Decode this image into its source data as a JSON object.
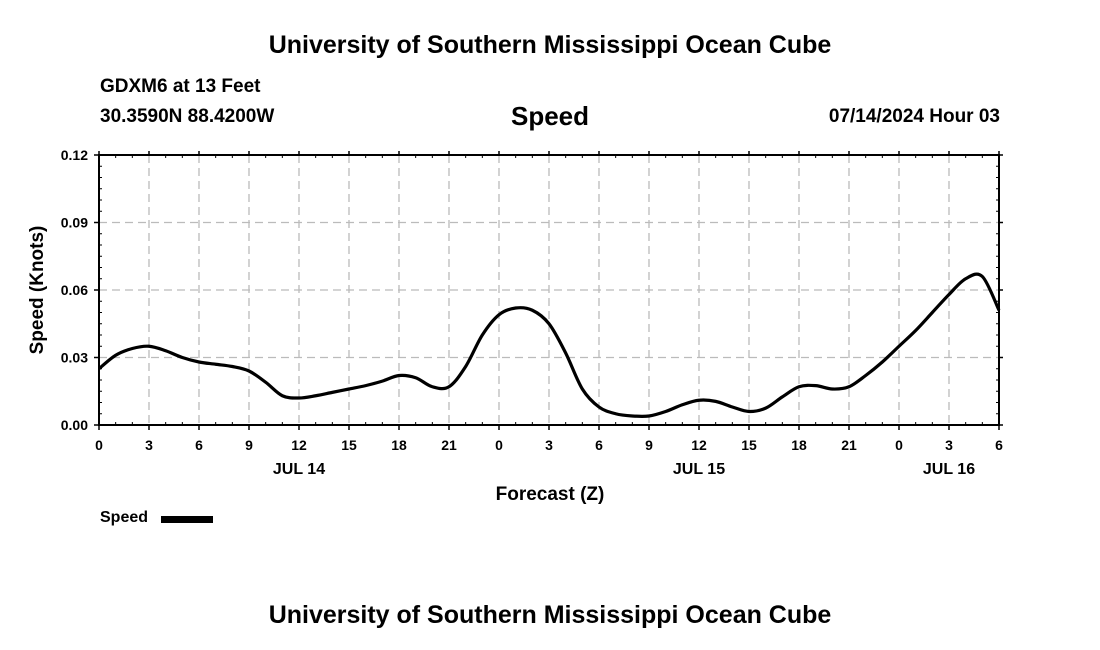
{
  "header": {
    "title_top": "University of Southern Mississippi Ocean Cube",
    "station": "GDXM6 at 13 Feet",
    "coords": "30.3590N  88.4200W",
    "plot_name": "Speed",
    "run_time": "07/14/2024 Hour 03",
    "title_bottom": "University of Southern Mississippi Ocean Cube"
  },
  "legend": {
    "label": "Speed"
  },
  "colors": {
    "line": "#000000",
    "grid": "#bbbbbb",
    "frame": "#000000"
  },
  "chart_data": {
    "type": "line",
    "title": "Speed",
    "xlabel": "Forecast (Z)",
    "ylabel": "Speed (Knots)",
    "xlim": [
      0,
      54
    ],
    "ylim": [
      0,
      0.12
    ],
    "yticks": [
      {
        "v": 0,
        "label": "0.00"
      },
      {
        "v": 0.03,
        "label": "0.03"
      },
      {
        "v": 0.06,
        "label": "0.06"
      },
      {
        "v": 0.09,
        "label": "0.09"
      },
      {
        "v": 0.12,
        "label": "0.12"
      }
    ],
    "xticks": [
      {
        "h": 0,
        "label": "0"
      },
      {
        "h": 3,
        "label": "3"
      },
      {
        "h": 6,
        "label": "6"
      },
      {
        "h": 9,
        "label": "9"
      },
      {
        "h": 12,
        "label": "12"
      },
      {
        "h": 15,
        "label": "15"
      },
      {
        "h": 18,
        "label": "18"
      },
      {
        "h": 21,
        "label": "21"
      },
      {
        "h": 24,
        "label": "0"
      },
      {
        "h": 27,
        "label": "3"
      },
      {
        "h": 30,
        "label": "6"
      },
      {
        "h": 33,
        "label": "9"
      },
      {
        "h": 36,
        "label": "12"
      },
      {
        "h": 39,
        "label": "15"
      },
      {
        "h": 42,
        "label": "18"
      },
      {
        "h": 45,
        "label": "21"
      },
      {
        "h": 48,
        "label": "0"
      },
      {
        "h": 51,
        "label": "3"
      },
      {
        "h": 54,
        "label": "6"
      }
    ],
    "date_labels": [
      {
        "h": 12,
        "label": "JUL 14"
      },
      {
        "h": 36,
        "label": "JUL 15"
      },
      {
        "h": 51,
        "label": "JUL 16"
      }
    ],
    "series": [
      {
        "name": "Speed",
        "x": [
          0,
          1,
          2,
          3,
          4,
          5,
          6,
          7,
          8,
          9,
          10,
          11,
          12,
          13,
          14,
          15,
          16,
          17,
          18,
          19,
          20,
          21,
          22,
          23,
          24,
          25,
          26,
          27,
          28,
          29,
          30,
          31,
          32,
          33,
          34,
          35,
          36,
          37,
          38,
          39,
          40,
          41,
          42,
          43,
          44,
          45,
          46,
          47,
          48,
          49,
          50,
          51,
          52,
          53,
          54
        ],
        "values": [
          0.025,
          0.031,
          0.034,
          0.035,
          0.033,
          0.03,
          0.028,
          0.027,
          0.026,
          0.024,
          0.019,
          0.013,
          0.012,
          0.013,
          0.0145,
          0.016,
          0.0175,
          0.0195,
          0.022,
          0.021,
          0.017,
          0.017,
          0.026,
          0.04,
          0.049,
          0.052,
          0.051,
          0.045,
          0.032,
          0.016,
          0.008,
          0.005,
          0.004,
          0.004,
          0.006,
          0.009,
          0.011,
          0.0105,
          0.008,
          0.006,
          0.0075,
          0.0125,
          0.017,
          0.0175,
          0.016,
          0.017,
          0.022,
          0.028,
          0.035,
          0.042,
          0.05,
          0.058,
          0.065,
          0.066,
          0.051
        ]
      }
    ]
  }
}
